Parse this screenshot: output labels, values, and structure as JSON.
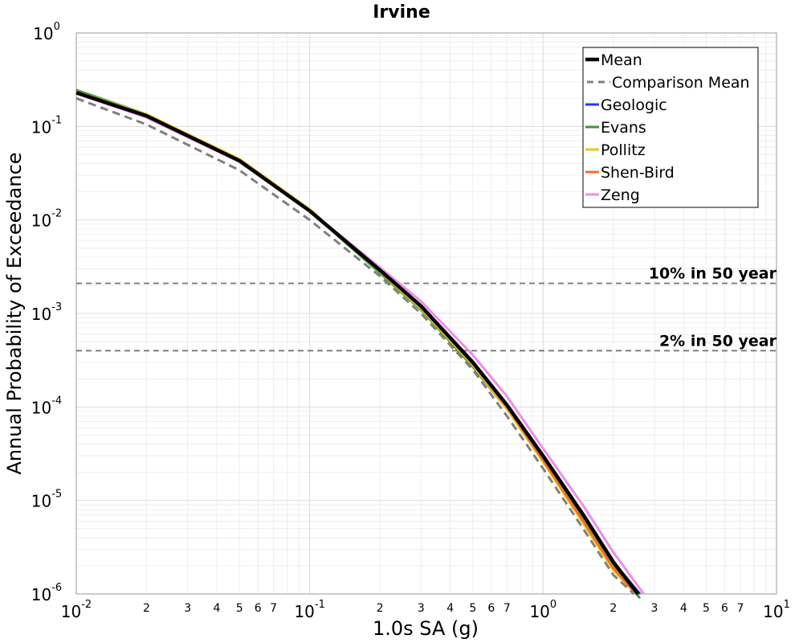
{
  "chart_data": {
    "type": "line",
    "title": "Irvine",
    "xlabel": "1.0s SA (g)",
    "ylabel": "Annual Probability of Exceedance",
    "x_scale": "log",
    "y_scale": "log",
    "xlim": [
      0.01,
      10
    ],
    "ylim": [
      1e-06,
      1
    ],
    "grid": true,
    "legend_position": "top-right",
    "x_ticks": [
      {
        "value": 0.01,
        "base": "10",
        "exp": "-2"
      },
      {
        "value": 0.1,
        "base": "10",
        "exp": "-1"
      },
      {
        "value": 1,
        "base": "10",
        "exp": "0"
      },
      {
        "value": 10,
        "base": "10",
        "exp": "1"
      }
    ],
    "x_minor_tick_labels": [
      "2",
      "3",
      "4",
      "5",
      "6",
      "7"
    ],
    "y_ticks": [
      {
        "value": 1,
        "base": "10",
        "exp": "0"
      },
      {
        "value": 0.1,
        "base": "10",
        "exp": "-1"
      },
      {
        "value": 0.01,
        "base": "10",
        "exp": "-2"
      },
      {
        "value": 0.001,
        "base": "10",
        "exp": "-3"
      },
      {
        "value": 0.0001,
        "base": "10",
        "exp": "-4"
      },
      {
        "value": 1e-05,
        "base": "10",
        "exp": "-5"
      },
      {
        "value": 1e-06,
        "base": "10",
        "exp": "-6"
      }
    ],
    "reference_lines": [
      {
        "label": "10% in 50 year",
        "y": 0.0021
      },
      {
        "label": "2% in 50 year",
        "y": 0.0004
      }
    ],
    "series": [
      {
        "name": "Geologic",
        "color": "#1f3fd8",
        "style": "solid",
        "x": [
          0.01,
          0.02,
          0.05,
          0.1,
          0.2,
          0.3,
          0.5,
          0.7,
          1.0,
          1.5,
          2.0,
          2.6
        ],
        "y": [
          0.23,
          0.13,
          0.042,
          0.0125,
          0.0028,
          0.00115,
          0.00029,
          0.0001,
          2.8e-05,
          6.5e-06,
          2.2e-06,
          1e-06
        ]
      },
      {
        "name": "Evans",
        "color": "#3a9b2a",
        "style": "solid",
        "x": [
          0.01,
          0.02,
          0.05,
          0.1,
          0.2,
          0.3,
          0.5,
          0.7,
          1.0,
          1.5,
          2.0,
          2.6
        ],
        "y": [
          0.245,
          0.135,
          0.043,
          0.0125,
          0.0027,
          0.0011,
          0.00027,
          9.5e-05,
          2.6e-05,
          6e-06,
          2e-06,
          9e-07
        ]
      },
      {
        "name": "Pollitz",
        "color": "#e8c81a",
        "style": "solid",
        "x": [
          0.01,
          0.02,
          0.05,
          0.1,
          0.2,
          0.3,
          0.5,
          0.7,
          1.0,
          1.5,
          2.0,
          2.5
        ],
        "y": [
          0.235,
          0.135,
          0.045,
          0.013,
          0.0028,
          0.00113,
          0.00028,
          9.5e-05,
          2.6e-05,
          5.5e-06,
          1.8e-06,
          1e-06
        ]
      },
      {
        "name": "Shen-Bird",
        "color": "#f07020",
        "style": "solid",
        "x": [
          0.01,
          0.02,
          0.05,
          0.1,
          0.2,
          0.3,
          0.5,
          0.7,
          1.0,
          1.5,
          2.0,
          2.5
        ],
        "y": [
          0.225,
          0.125,
          0.042,
          0.0125,
          0.0029,
          0.00118,
          0.00029,
          0.0001,
          2.7e-05,
          5.8e-06,
          1.9e-06,
          1e-06
        ]
      },
      {
        "name": "Zeng",
        "color": "#f08ce8",
        "style": "solid",
        "x": [
          0.01,
          0.02,
          0.05,
          0.1,
          0.2,
          0.3,
          0.5,
          0.7,
          1.0,
          1.5,
          2.0,
          2.7
        ],
        "y": [
          0.225,
          0.125,
          0.042,
          0.0125,
          0.0031,
          0.00135,
          0.00036,
          0.00013,
          3.6e-05,
          8.5e-06,
          2.8e-06,
          1e-06
        ]
      },
      {
        "name": "Comparison Mean",
        "color": "#808080",
        "style": "dashed",
        "x": [
          0.01,
          0.02,
          0.05,
          0.1,
          0.2,
          0.3,
          0.5,
          0.7,
          1.0,
          1.5,
          2.0,
          2.45
        ],
        "y": [
          0.2,
          0.105,
          0.034,
          0.01,
          0.0025,
          0.001,
          0.00025,
          8e-05,
          2.2e-05,
          4.8e-06,
          1.6e-06,
          1e-06
        ]
      },
      {
        "name": "Mean",
        "color": "#000000",
        "style": "solid",
        "x": [
          0.01,
          0.02,
          0.05,
          0.1,
          0.2,
          0.3,
          0.5,
          0.7,
          1.0,
          1.5,
          2.0,
          2.55
        ],
        "y": [
          0.23,
          0.13,
          0.043,
          0.0125,
          0.0029,
          0.0012,
          0.0003,
          0.000105,
          3e-05,
          6.8e-06,
          2.2e-06,
          1e-06
        ]
      }
    ],
    "legend_order": [
      "Mean",
      "Comparison Mean",
      "Geologic",
      "Evans",
      "Pollitz",
      "Shen-Bird",
      "Zeng"
    ]
  }
}
